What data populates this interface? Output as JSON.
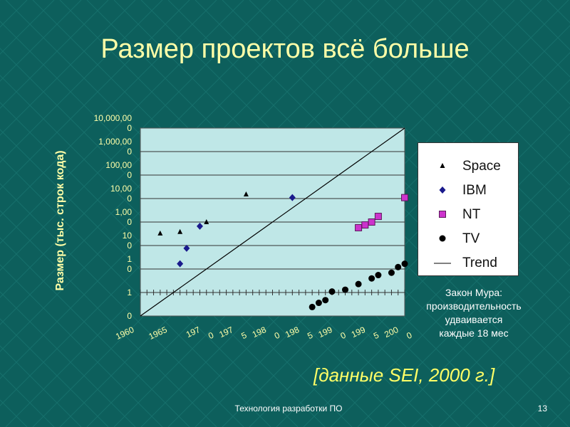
{
  "slide": {
    "title": "Размер проектов всё больше",
    "moore_note": [
      "Закон Мура:",
      "производительность",
      "удваивается",
      "каждые 18 мес"
    ],
    "source": "[данные SEI, 2000 г.]",
    "footer": "Технология разработки ПО",
    "page_number": "13",
    "colors": {
      "background": "#0d5f5c",
      "title": "#ffffa8",
      "source": "#ffff66",
      "plot_area": "#bfe7e7"
    }
  },
  "chart_data": {
    "type": "scatter",
    "title": "",
    "xlabel": "",
    "ylabel": "Размер (тыс. строк кода)",
    "yscale": "log",
    "xlim": [
      1960,
      2000
    ],
    "ytick_labels": [
      [
        "0"
      ],
      [
        "1"
      ],
      [
        "1",
        "0"
      ],
      [
        "10",
        "0"
      ],
      [
        "1,00",
        "0"
      ],
      [
        "10,00",
        "0"
      ],
      [
        "100,00",
        "0"
      ],
      [
        "1,000,00",
        "0"
      ],
      [
        "10,000,00",
        "0"
      ]
    ],
    "xtick_labels": [
      [
        "1960"
      ],
      [
        "1965"
      ],
      [
        "197",
        "0"
      ],
      [
        "197",
        "5"
      ],
      [
        "198",
        "0"
      ],
      [
        "198",
        "5"
      ],
      [
        "199",
        "0"
      ],
      [
        "199",
        "5"
      ],
      [
        "200",
        "0"
      ]
    ],
    "grid": true,
    "legend_position": "right",
    "series": [
      {
        "name": "Space",
        "marker": "triangle",
        "color": "#000000",
        "points": [
          [
            1963,
            25
          ],
          [
            1966,
            30
          ],
          [
            1970,
            100
          ],
          [
            1976,
            3000
          ]
        ]
      },
      {
        "name": "IBM",
        "marker": "diamond",
        "color": "#1a1a8c",
        "points": [
          [
            1966,
            0.6
          ],
          [
            1967,
            4
          ],
          [
            1969,
            60
          ],
          [
            1983,
            2000
          ]
        ]
      },
      {
        "name": "NT",
        "marker": "square",
        "color": "#cc33cc",
        "points": [
          [
            1993,
            50
          ],
          [
            1994,
            70
          ],
          [
            1995,
            100
          ],
          [
            1996,
            200
          ],
          [
            2000,
            2000
          ]
        ]
      },
      {
        "name": "TV",
        "marker": "circle",
        "color": "#000000",
        "points": [
          [
            1986,
            0.003
          ],
          [
            1987,
            0.005
          ],
          [
            1988,
            0.007
          ],
          [
            1989,
            0.02
          ],
          [
            1991,
            0.025
          ],
          [
            1993,
            0.05
          ],
          [
            1995,
            0.1
          ],
          [
            1996,
            0.15
          ],
          [
            1998,
            0.2
          ],
          [
            1999,
            0.4
          ],
          [
            2000,
            0.6
          ]
        ]
      },
      {
        "name": "Trend",
        "type": "line",
        "color": "#000000",
        "points": [
          [
            1960,
            0.001
          ],
          [
            2000,
            10000000
          ]
        ]
      }
    ]
  }
}
